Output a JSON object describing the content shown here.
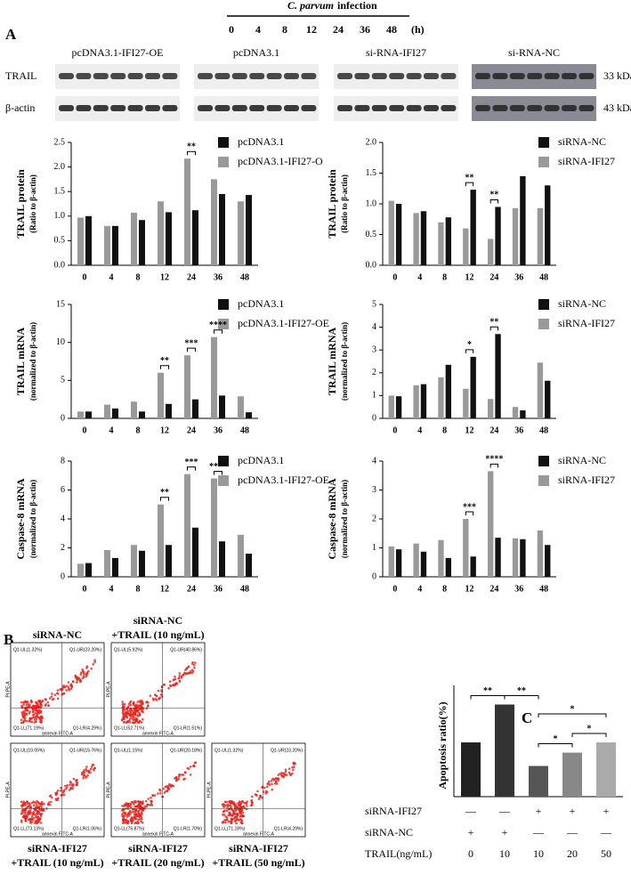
{
  "header": {
    "treatment_italic": "C. parvum",
    "treatment": "infection",
    "timepoints": [
      "0",
      "4",
      "8",
      "12",
      "24",
      "36",
      "48"
    ],
    "unit": "(h)"
  },
  "panel_labels": [
    "A",
    "B",
    "C"
  ],
  "blots": {
    "groups": [
      "pcDNA3.1-IFI27-OE",
      "pcDNA3.1",
      "si-RNA-IFI27",
      "si-RNA-NC"
    ],
    "rows": [
      "TRAIL",
      "β-actin"
    ],
    "sizes": [
      "33 kDa",
      "43 kDa"
    ]
  },
  "chart_data": [
    {
      "type": "grouped-bar",
      "ylabel": "TRAIL protein",
      "ylabel_sub": "(Ratio to β-actin)",
      "categories": [
        "0",
        "4",
        "8",
        "12",
        "24",
        "36",
        "48"
      ],
      "series": [
        {
          "name": "pcDNA3.1",
          "color": "#111111",
          "values": [
            1.0,
            0.8,
            0.92,
            1.08,
            1.12,
            1.45,
            1.43
          ]
        },
        {
          "name": "pcDNA3.1-IFI27-O",
          "color": "#999999",
          "values": [
            0.97,
            0.8,
            1.07,
            1.3,
            2.17,
            1.75,
            1.3
          ]
        }
      ],
      "ylim": [
        0,
        2.5
      ],
      "yticks": [
        {
          "value": 0,
          "label": "0.0"
        },
        {
          "value": 0.5,
          "label": "0.5"
        },
        {
          "value": 1,
          "label": "1.0"
        },
        {
          "value": 1.5,
          "label": "1.5"
        },
        {
          "value": 2,
          "label": "2.0"
        },
        {
          "value": 2.5,
          "label": "2.5"
        }
      ],
      "annotations": [
        {
          "text": "**",
          "at": "24"
        }
      ]
    },
    {
      "type": "grouped-bar",
      "ylabel": "TRAIL protein",
      "ylabel_sub": "(Ratio to β-actin)",
      "categories": [
        "0",
        "4",
        "8",
        "12",
        "24",
        "36",
        "48"
      ],
      "series": [
        {
          "name": "siRNA-NC",
          "color": "#111111",
          "values": [
            1.0,
            0.88,
            0.78,
            1.23,
            0.95,
            1.45,
            1.3
          ]
        },
        {
          "name": "siRNA-IFI27",
          "color": "#999999",
          "values": [
            1.05,
            0.85,
            0.7,
            0.6,
            0.43,
            0.93,
            0.93
          ]
        }
      ],
      "ylim": [
        0,
        2
      ],
      "yticks": [
        {
          "value": 0,
          "label": "0.0"
        },
        {
          "value": 0.5,
          "label": "0.5"
        },
        {
          "value": 1,
          "label": "1.0"
        },
        {
          "value": 1.5,
          "label": "1.5"
        },
        {
          "value": 2,
          "label": "2.0"
        }
      ],
      "annotations": [
        {
          "text": "**",
          "at": "12"
        },
        {
          "text": "**",
          "at": "24"
        }
      ]
    },
    {
      "type": "grouped-bar",
      "ylabel": "TRAIL mRNA",
      "ylabel_sub": "(normalized to β-actin)",
      "categories": [
        "0",
        "4",
        "8",
        "12",
        "24",
        "36",
        "48"
      ],
      "series": [
        {
          "name": "pcDNA3.1",
          "color": "#111111",
          "values": [
            0.9,
            1.3,
            0.9,
            1.9,
            2.5,
            3.0,
            0.8
          ]
        },
        {
          "name": "pcDNA3.1-IFI27-OE",
          "color": "#999999",
          "values": [
            0.9,
            1.8,
            2.2,
            6.0,
            8.3,
            10.7,
            2.9
          ]
        }
      ],
      "ylim": [
        0,
        15
      ],
      "yticks": [
        0,
        5,
        10,
        15
      ],
      "annotations": [
        {
          "text": "**",
          "at": "12"
        },
        {
          "text": "***",
          "at": "24"
        },
        {
          "text": "****",
          "at": "36"
        }
      ]
    },
    {
      "type": "grouped-bar",
      "ylabel": "TRAIL mRNA",
      "ylabel_sub": "(normalized to β-actin)",
      "categories": [
        "0",
        "4",
        "8",
        "12",
        "24",
        "36",
        "48"
      ],
      "series": [
        {
          "name": "siRNA-NC",
          "color": "#111111",
          "values": [
            0.97,
            1.5,
            2.35,
            2.7,
            3.7,
            0.35,
            1.65
          ]
        },
        {
          "name": "siRNA-IFI27",
          "color": "#999999",
          "values": [
            1.0,
            1.45,
            1.8,
            1.3,
            0.85,
            0.5,
            2.45
          ]
        }
      ],
      "ylim": [
        0,
        5
      ],
      "yticks": [
        0,
        1,
        2,
        3,
        4,
        5
      ],
      "annotations": [
        {
          "text": "*",
          "at": "12"
        },
        {
          "text": "**",
          "at": "24"
        }
      ]
    },
    {
      "type": "grouped-bar",
      "ylabel": "Caspase-8 mRNA",
      "ylabel_sub": "(normalized to β-actin)",
      "categories": [
        "0",
        "4",
        "8",
        "12",
        "24",
        "36",
        "48"
      ],
      "series": [
        {
          "name": "pcDNA3.1",
          "color": "#111111",
          "values": [
            0.95,
            1.3,
            1.8,
            2.2,
            3.4,
            2.45,
            1.6
          ]
        },
        {
          "name": "pcDNA3.1-IFI27-OE",
          "color": "#999999",
          "values": [
            0.9,
            1.85,
            2.2,
            5.0,
            7.1,
            6.8,
            2.9
          ]
        }
      ],
      "ylim": [
        0,
        8
      ],
      "yticks": [
        0,
        2,
        4,
        6,
        8
      ],
      "annotations": [
        {
          "text": "**",
          "at": "12"
        },
        {
          "text": "***",
          "at": "24"
        },
        {
          "text": "****",
          "at": "36"
        }
      ]
    },
    {
      "type": "grouped-bar",
      "ylabel": "Caspase-8 mRNA",
      "ylabel_sub": "(normalized to β-actin)",
      "categories": [
        "0",
        "4",
        "8",
        "12",
        "24",
        "36",
        "48"
      ],
      "series": [
        {
          "name": "siRNA-NC",
          "color": "#111111",
          "values": [
            0.95,
            0.87,
            0.65,
            0.7,
            1.35,
            1.3,
            1.1
          ]
        },
        {
          "name": "siRNA-IFI27",
          "color": "#999999",
          "values": [
            1.05,
            1.15,
            1.27,
            2.0,
            3.65,
            1.33,
            1.6
          ]
        }
      ],
      "ylim": [
        0,
        4
      ],
      "yticks": [
        0,
        1,
        2,
        3,
        4
      ],
      "annotations": [
        {
          "text": "***",
          "at": "12"
        },
        {
          "text": "****",
          "at": "24"
        }
      ]
    },
    {
      "type": "bar",
      "ylabel": "Apoptosis ratio(%)",
      "values": [
        26.5,
        45,
        15,
        21.5,
        26.5
      ],
      "colors": [
        "#222222",
        "#333333",
        "#555555",
        "#888888",
        "#aaaaaa"
      ],
      "ylim": [
        0,
        50
      ],
      "annotations": [
        {
          "text": "**",
          "from": 0,
          "to": 1
        },
        {
          "text": "**",
          "from": 1,
          "to": 2
        },
        {
          "text": "*",
          "from": 2,
          "to": 3
        },
        {
          "text": "*",
          "from": 3,
          "to": 4
        },
        {
          "text": "*",
          "from": 2,
          "to": 4
        }
      ],
      "table": [
        {
          "label": "siRNA-IFI27",
          "cells": [
            "—",
            "—",
            "+",
            "+",
            "+"
          ]
        },
        {
          "label": "siRNA-NC",
          "cells": [
            "+",
            "+",
            "—",
            "—",
            "—"
          ]
        },
        {
          "label": "TRAIL(ng/mL)",
          "cells": [
            "0",
            "10",
            "10",
            "20",
            "50"
          ]
        }
      ]
    }
  ],
  "flow": {
    "x_label": "annexin FITC-A",
    "y_label": "PI-PE-A",
    "panels": [
      {
        "title": [
          "siRNA-NC"
        ],
        "quadrants": [
          "Q1-UL(1.32%)",
          "Q1-UR(23.20%)",
          "Q1-LL(71.19%)",
          "Q1-LR(4.29%)"
        ]
      },
      {
        "title": [
          "siRNA-NC",
          "+TRAIL (10 ng/mL)"
        ],
        "quadrants": [
          "Q1-UL(5.92%)",
          "Q1-UR(40.86%)",
          "Q1-LL(52.71%)",
          "Q1-LR(1.51%)"
        ]
      },
      {
        "title": [
          "siRNA-IFI27",
          "+TRAIL (10 ng/mL)"
        ],
        "quadrants": [
          "Q1-UL(10.05%)",
          "Q1-UR(15.76%)",
          "Q1-LL(73.13%)",
          "Q1-LR(1.06%)"
        ]
      },
      {
        "title": [
          "siRNA-IFI27",
          "+TRAIL (20 ng/mL)"
        ],
        "quadrants": [
          "Q1-UL(1.15%)",
          "Q1-UR(20.18%)",
          "Q1-LL(76.87%)",
          "Q1-LR(1.70%)"
        ]
      },
      {
        "title": [
          "siRNA-IFI27",
          "+TRAIL (50 ng/mL)"
        ],
        "quadrants": [
          "Q1-UL(1.32%)",
          "Q1-UR(23.20%)",
          "Q1-LL(71.18%)",
          "Q1-LR(4.29%)"
        ]
      }
    ]
  }
}
